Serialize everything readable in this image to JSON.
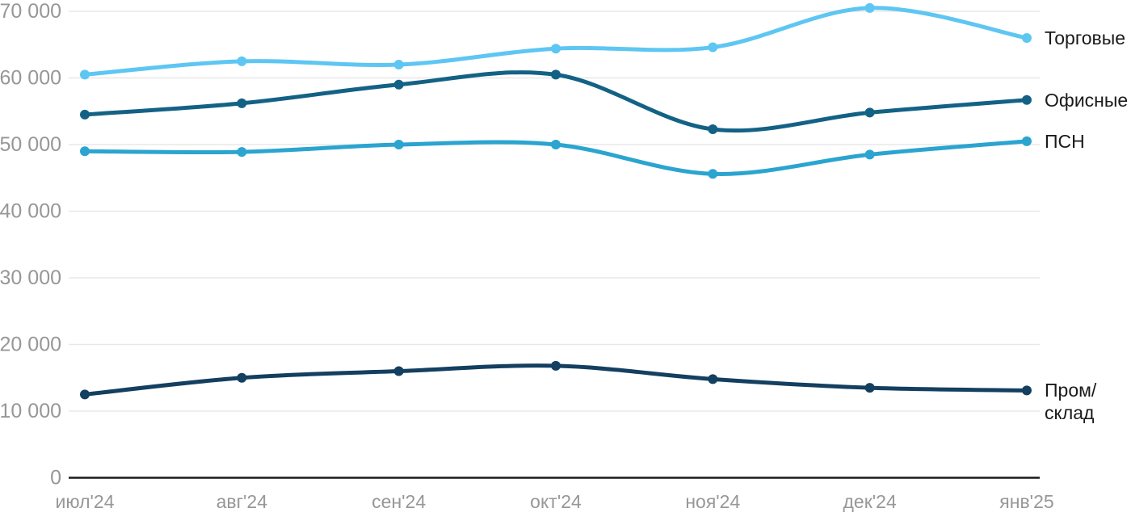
{
  "chart_data": {
    "type": "line",
    "title": "",
    "xlabel": "",
    "ylabel": "",
    "categories": [
      "июл'24",
      "авг'24",
      "сен'24",
      "окт'24",
      "ноя'24",
      "дек'24",
      "янв'25"
    ],
    "series": [
      {
        "name": "Торговые",
        "color": "#5EC6F2",
        "values": [
          60500,
          62500,
          62000,
          64400,
          64600,
          70500,
          66000
        ]
      },
      {
        "name": "Офисные",
        "color": "#136285",
        "values": [
          54500,
          56200,
          59000,
          60500,
          52300,
          54800,
          56700
        ]
      },
      {
        "name": "ПСН",
        "color": "#2BA4D0",
        "values": [
          49000,
          48900,
          50000,
          50000,
          45600,
          48500,
          50500
        ]
      },
      {
        "name": "Пром/склад",
        "color": "#133F60",
        "values": [
          12500,
          15000,
          16000,
          16800,
          14800,
          13500,
          13100
        ]
      }
    ],
    "ylim": [
      0,
      70000
    ],
    "ytick_step": 10000,
    "ytick_labels": [
      "0",
      "10 000",
      "20 000",
      "30 000",
      "40 000",
      "50 000",
      "60 000",
      "70 000"
    ],
    "grid": "horizontal",
    "smooth": true,
    "legend_position": "right-of-line-ends"
  },
  "legend": {
    "items": [
      {
        "label": "Торговые"
      },
      {
        "label": "Офисные"
      },
      {
        "label": "ПСН"
      },
      {
        "label": "Пром/\nсклад"
      }
    ]
  },
  "colors": {
    "background": "#FFFFFF",
    "grid": "#E8E8E8",
    "axis": "#1A1A1A",
    "tick_text": "#979797",
    "legend_text": "#1A1A1A"
  }
}
